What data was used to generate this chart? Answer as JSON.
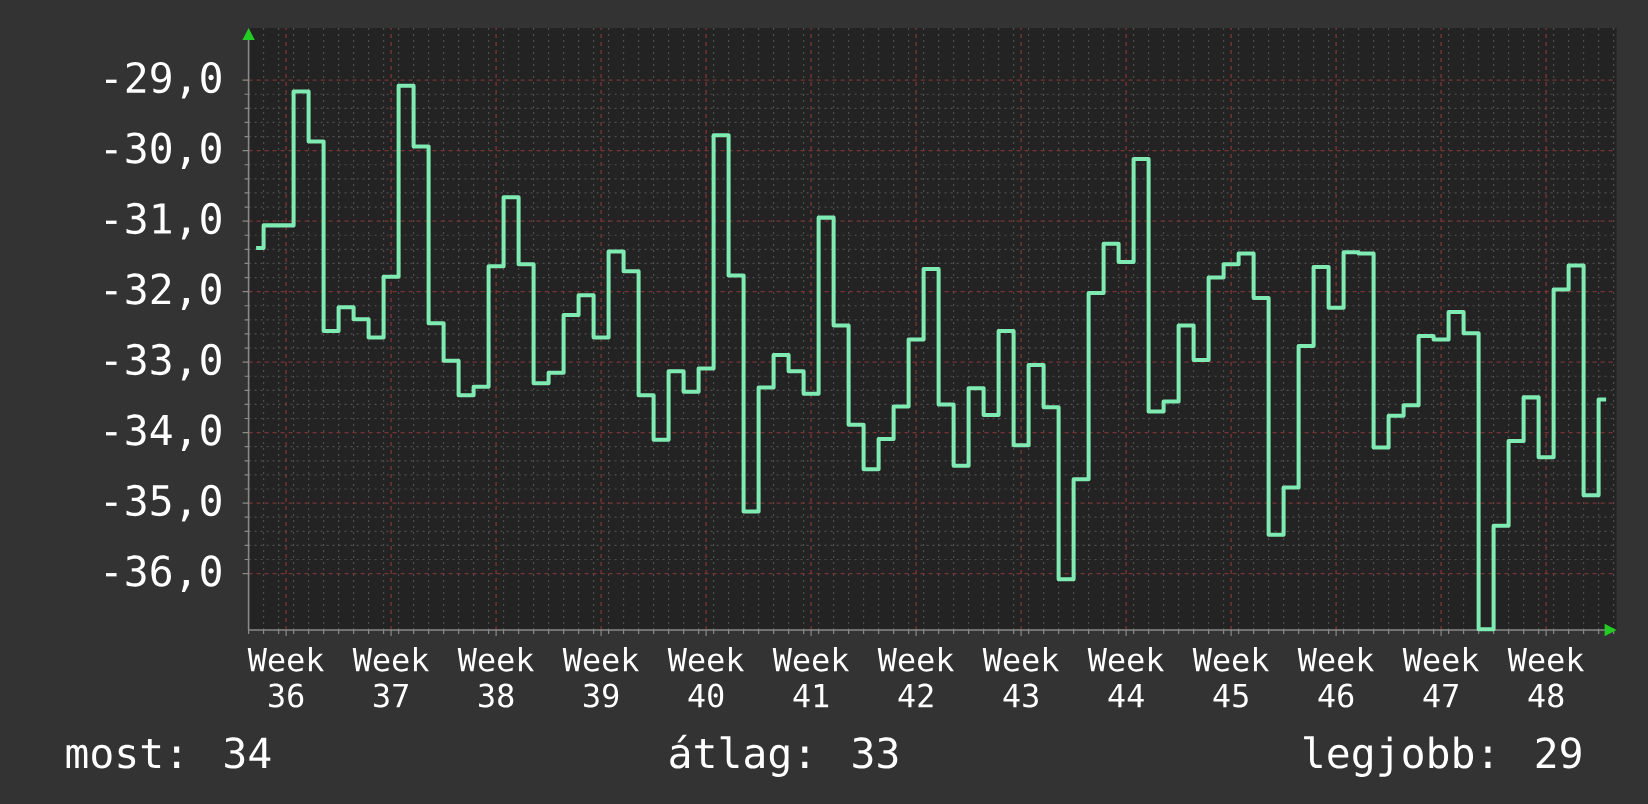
{
  "chart_data": {
    "type": "step",
    "color": "#7febb3",
    "categories": [
      null,
      null,
      "Week 36",
      null,
      null,
      null,
      null,
      null,
      null,
      "Week 37",
      null,
      null,
      null,
      null,
      null,
      null,
      "Week 38",
      null,
      null,
      null,
      null,
      null,
      null,
      "Week 39",
      null,
      null,
      null,
      null,
      null,
      null,
      "Week 40",
      null,
      null,
      null,
      null,
      null,
      null,
      "Week 41",
      null,
      null,
      null,
      null,
      null,
      null,
      "Week 42",
      null,
      null,
      null,
      null,
      null,
      null,
      "Week 43",
      null,
      null,
      null,
      null,
      null,
      null,
      "Week 44",
      null,
      null,
      null,
      null,
      null,
      null,
      "Week 45",
      null,
      null,
      null,
      null,
      null,
      null,
      "Week 46",
      null,
      null,
      null,
      null,
      null,
      null,
      "Week 47",
      null,
      null,
      null,
      null,
      null,
      null,
      "Week 48",
      null,
      null,
      null,
      null
    ],
    "values": [
      -31.38,
      -31.06,
      -31.06,
      -29.16,
      -29.87,
      -32.56,
      -32.22,
      -32.39,
      -32.65,
      -31.79,
      -29.08,
      -29.94,
      -32.45,
      -32.98,
      -33.47,
      -33.35,
      -31.64,
      -30.66,
      -31.61,
      -33.3,
      -33.15,
      -32.33,
      -32.05,
      -32.65,
      -31.43,
      -31.71,
      -33.47,
      -34.1,
      -33.13,
      -33.42,
      -33.09,
      -29.78,
      -31.77,
      -35.12,
      -33.36,
      -32.9,
      -33.13,
      -33.45,
      -30.95,
      -32.48,
      -33.89,
      -34.52,
      -34.09,
      -33.63,
      -32.68,
      -31.68,
      -33.6,
      -34.47,
      -33.37,
      -33.75,
      -32.56,
      -34.18,
      -33.04,
      -33.64,
      -36.08,
      -34.66,
      -32.02,
      -31.32,
      -31.58,
      -30.12,
      -33.7,
      -33.56,
      -32.48,
      -32.97,
      -31.8,
      -31.61,
      -31.46,
      -32.09,
      -35.45,
      -34.78,
      -32.77,
      -31.65,
      -32.23,
      -31.44,
      -31.46,
      -34.21,
      -33.76,
      -33.61,
      -32.63,
      -32.68,
      -32.29,
      -32.59,
      -36.79,
      -35.32,
      -34.12,
      -33.5,
      -34.35,
      -31.97,
      -31.63,
      -34.89,
      -33.53
    ],
    "ylim": [
      -36.8,
      -28.26
    ],
    "yticks": [
      {
        "value": -36,
        "label": "-36,0"
      },
      {
        "value": -35,
        "label": "-35,0"
      },
      {
        "value": -34,
        "label": "-34,0"
      },
      {
        "value": -33,
        "label": "-33,0"
      },
      {
        "value": -32,
        "label": "-32,0"
      },
      {
        "value": -31,
        "label": "-31,0"
      },
      {
        "value": -30,
        "label": "-30,0"
      },
      {
        "value": -29,
        "label": "-29,0"
      }
    ],
    "grid": true,
    "annotations": [
      "most: 34",
      "átlag: 33",
      "legjobb: 29"
    ]
  }
}
